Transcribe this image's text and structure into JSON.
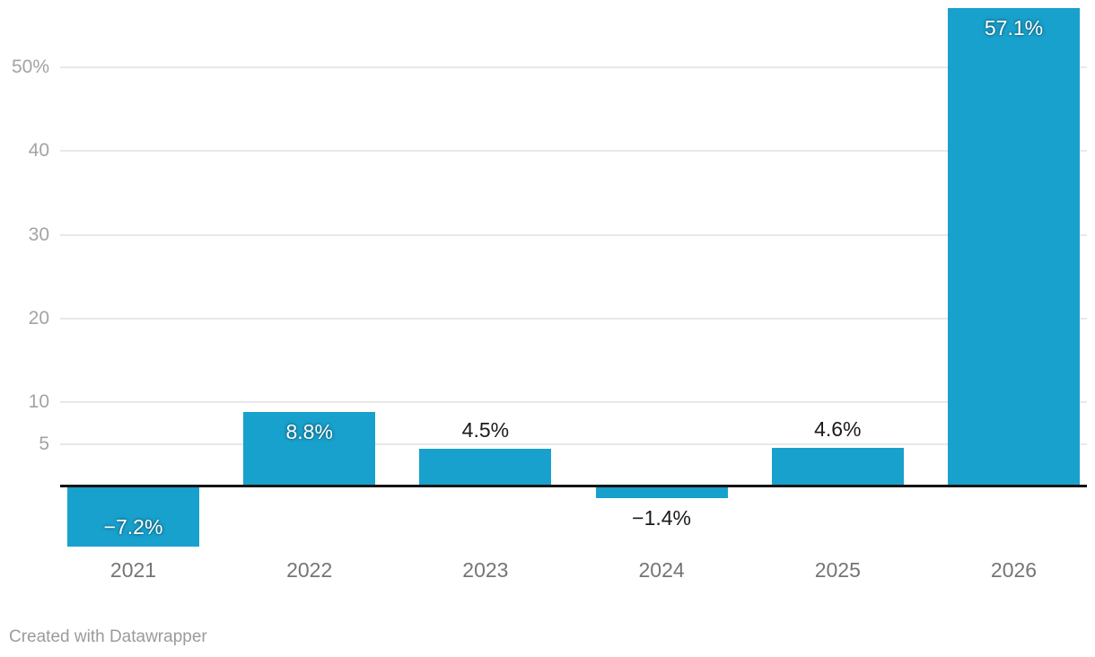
{
  "chart_data": {
    "type": "bar",
    "categories": [
      "2021",
      "2022",
      "2023",
      "2024",
      "2025",
      "2026"
    ],
    "values": [
      -7.2,
      8.8,
      4.5,
      -1.4,
      4.6,
      57.1
    ],
    "value_labels": [
      "−7.2%",
      "8.8%",
      "4.5%",
      "−1.4%",
      "4.6%",
      "57.1%"
    ],
    "y_ticks": [
      {
        "v": 5,
        "label": "5"
      },
      {
        "v": 10,
        "label": "10"
      },
      {
        "v": 20,
        "label": "20"
      },
      {
        "v": 30,
        "label": "30"
      },
      {
        "v": 40,
        "label": "40"
      },
      {
        "v": 50,
        "label": "50%"
      }
    ],
    "ylim": [
      -10.6,
      58.1
    ],
    "title": "",
    "xlabel": "",
    "ylabel": "",
    "grid": "horizontal",
    "legend": "none"
  },
  "colors": {
    "bar": "#18a1cd",
    "gridline": "#e8e8e8",
    "baseline": "#141414",
    "y_tick_label": "#a3a3a3",
    "x_tick_label": "#757575",
    "value_label_inside": "#ffffff",
    "value_label_outside": "#1a1a1a",
    "footer": "#9b9b9b"
  },
  "footer": {
    "credit": "Created with Datawrapper"
  }
}
